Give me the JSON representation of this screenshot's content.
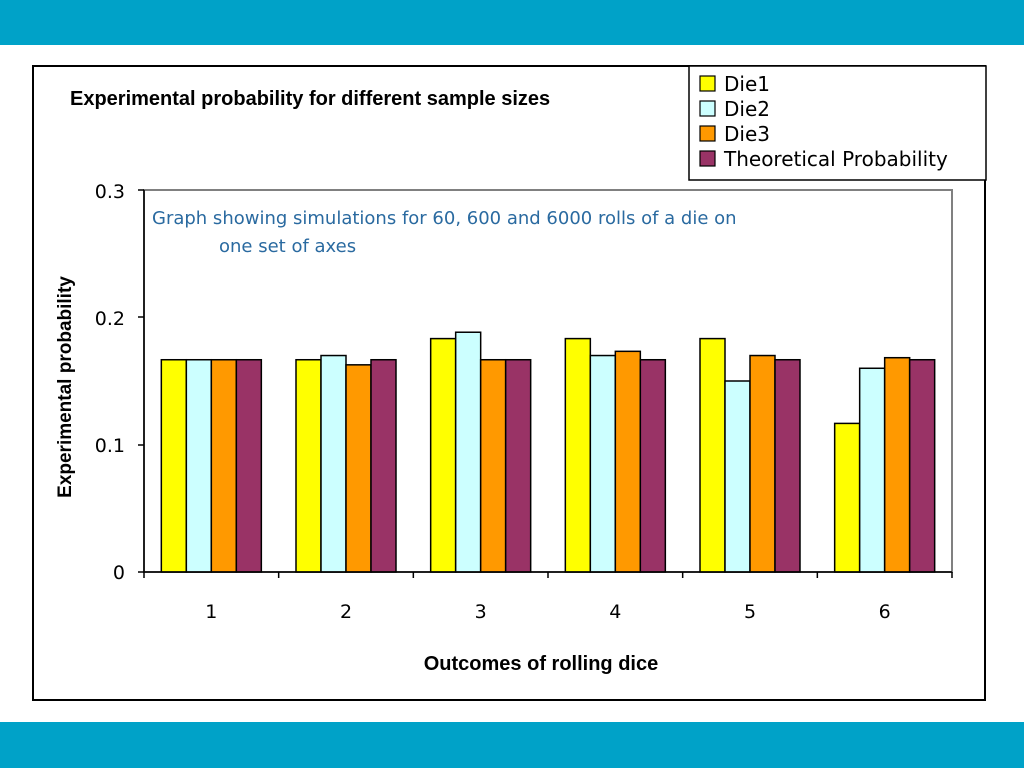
{
  "theme": {
    "band_color": "#00a2c8",
    "annotation_color": "#2a6aa0"
  },
  "chart_data": {
    "type": "bar",
    "title": "Experimental probability for different  sample sizes",
    "xlabel": "Outcomes of rolling dice",
    "ylabel": "Experimental probability",
    "categories": [
      "1",
      "2",
      "3",
      "4",
      "5",
      "6"
    ],
    "ylim": [
      0,
      0.3
    ],
    "yticks": [
      "0",
      "0.1",
      "0.2",
      "0.3"
    ],
    "grid": false,
    "legend_position": "top-right",
    "series": [
      {
        "name": "Die1",
        "color": "#ffff00",
        "values": [
          0.1667,
          0.1667,
          0.1833,
          0.1833,
          0.1833,
          0.1167
        ]
      },
      {
        "name": "Die2",
        "color": "#ccffff",
        "values": [
          0.1667,
          0.17,
          0.1883,
          0.17,
          0.15,
          0.16
        ]
      },
      {
        "name": "Die3",
        "color": "#ff9900",
        "values": [
          0.1667,
          0.1627,
          0.1667,
          0.1733,
          0.17,
          0.1683
        ]
      },
      {
        "name": "Theoretical Probability",
        "color": "#993366",
        "values": [
          0.1667,
          0.1667,
          0.1667,
          0.1667,
          0.1667,
          0.1667
        ]
      }
    ],
    "annotation": {
      "line1": "Graph showing simulations for 60, 600 and 6000 rolls of a die on",
      "line2": "one set of axes"
    }
  }
}
